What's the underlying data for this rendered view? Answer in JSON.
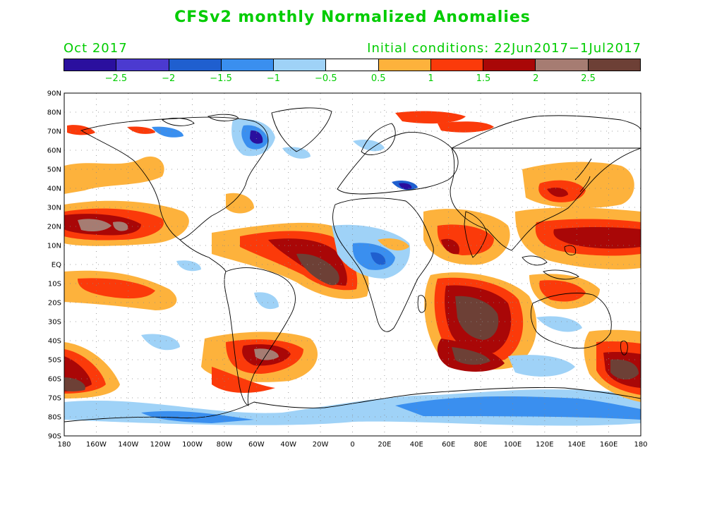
{
  "title": "CFSv2 monthly Normalized Anomalies",
  "valid_month": "Oct 2017",
  "initial_conditions": "Initial conditions: 22Jun2017−1Jul2017",
  "colorbar": {
    "colors": [
      "#2a0f9e",
      "#4b3ad0",
      "#1f5fcf",
      "#3a8fef",
      "#9fd2f7",
      "#ffffff",
      "#fdb23c",
      "#fb3a0a",
      "#a90707",
      "#a67c72",
      "#6d4036"
    ],
    "labels": [
      "−2.5",
      "−2",
      "−1.5",
      "−1",
      "−0.5",
      "0.5",
      "1",
      "1.5",
      "2",
      "2.5"
    ]
  },
  "lat_labels": [
    "90N",
    "80N",
    "70N",
    "60N",
    "50N",
    "40N",
    "30N",
    "20N",
    "10N",
    "EQ",
    "10S",
    "20S",
    "30S",
    "40S",
    "50S",
    "60S",
    "70S",
    "80S",
    "90S"
  ],
  "lon_labels": [
    "180",
    "160W",
    "140W",
    "120W",
    "100W",
    "80W",
    "60W",
    "40W",
    "20W",
    "0",
    "20E",
    "40E",
    "60E",
    "80E",
    "100E",
    "120E",
    "140E",
    "160E",
    "180"
  ]
}
